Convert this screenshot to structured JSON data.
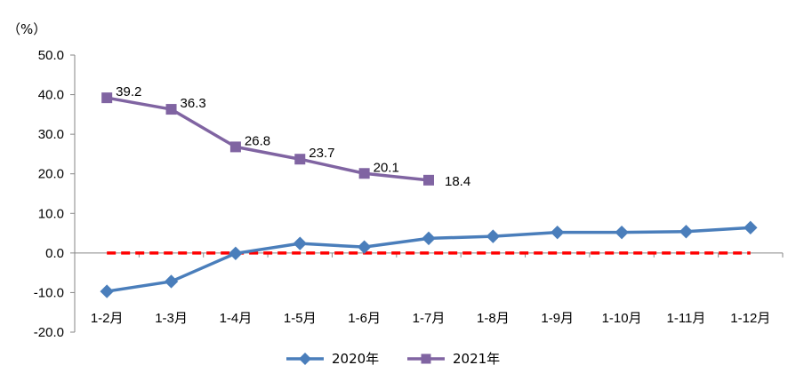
{
  "chart_data": {
    "type": "line",
    "title": "",
    "xlabel": "",
    "ylabel": "",
    "unit_label": "（%）",
    "categories": [
      "1-2月",
      "1-3月",
      "1-4月",
      "1-5月",
      "1-6月",
      "1-7月",
      "1-8月",
      "1-9月",
      "1-10月",
      "1-11月",
      "1-12月"
    ],
    "ylim": [
      -20,
      50
    ],
    "yticks": [
      -20,
      -10,
      0,
      10,
      20,
      30,
      40,
      50
    ],
    "ytick_labels": [
      "-20.0",
      "-10.0",
      "0.0",
      "10.0",
      "20.0",
      "30.0",
      "40.0",
      "50.0"
    ],
    "grid": false,
    "legend_position": "bottom",
    "series": [
      {
        "name": "2020年",
        "color": "#4a7ebb",
        "marker": "diamond",
        "values": [
          -9.7,
          -7.2,
          -0.1,
          2.4,
          1.5,
          3.7,
          4.2,
          5.2,
          5.2,
          5.4,
          6.4
        ],
        "data_labels": []
      },
      {
        "name": "2021年",
        "color": "#8064a2",
        "marker": "square",
        "values": [
          39.2,
          36.3,
          26.8,
          23.7,
          20.1,
          18.4,
          null,
          null,
          null,
          null,
          null
        ],
        "data_labels": [
          "39.2",
          "36.3",
          "26.8",
          "23.7",
          "20.1",
          "18.4"
        ]
      }
    ],
    "reference_line": {
      "value": 0,
      "color": "#ff0000",
      "style": "dashed"
    }
  }
}
